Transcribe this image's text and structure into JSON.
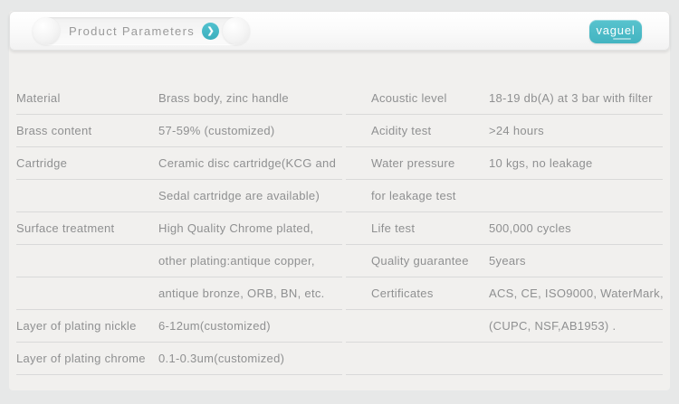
{
  "header": {
    "title": "Product Parameters",
    "arrow_icon": "chevron-right",
    "logo_text": "vaguel"
  },
  "colors": {
    "accent_teal": "#45b9c6",
    "panel_background": "#f1f0ee",
    "page_background": "#e7e8e8",
    "text_gray": "#8f9091",
    "divider": "#d9d9d9"
  },
  "table": {
    "left_rows": [
      {
        "label": "Material",
        "value": "Brass body, zinc handle"
      },
      {
        "label": "Brass content",
        "value": "57-59% (customized)"
      },
      {
        "label": "Cartridge",
        "value": "Ceramic disc cartridge(KCG and"
      },
      {
        "label": "",
        "value": "Sedal cartridge are available)"
      },
      {
        "label": "Surface treatment",
        "value": "High Quality Chrome plated,"
      },
      {
        "label": "",
        "value": "other plating:antique copper,"
      },
      {
        "label": "",
        "value": "antique bronze, ORB, BN, etc."
      },
      {
        "label": "Layer of plating nickle",
        "value": "6-12um(customized)"
      },
      {
        "label": "Layer of plating chrome",
        "value": "0.1-0.3um(customized)"
      }
    ],
    "right_rows": [
      {
        "label": "Acoustic level",
        "value": "18-19 db(A) at 3 bar with filter"
      },
      {
        "label": "Acidity test",
        "value": ">24 hours"
      },
      {
        "label": "Water pressure",
        "value": "10 kgs, no leakage"
      },
      {
        "label": "for leakage test",
        "value": ""
      },
      {
        "label": "Life test",
        "value": "500,000 cycles"
      },
      {
        "label": "Quality guarantee",
        "value": "5years"
      },
      {
        "label": "Certificates",
        "value": "ACS, CE, ISO9000,  WaterMark,"
      },
      {
        "label": "",
        "value": "(CUPC, NSF,AB1953) ."
      },
      {
        "label": "",
        "value": ""
      }
    ]
  }
}
